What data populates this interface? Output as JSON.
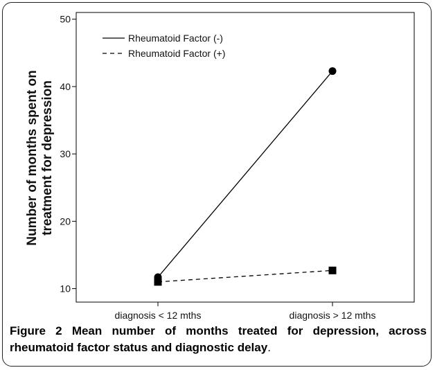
{
  "chart_data": {
    "type": "line",
    "categories": [
      "diagnosis < 12 mths",
      "diagnosis > 12 mths"
    ],
    "series": [
      {
        "name": "Rheumatoid Factor (-)",
        "values": [
          11.7,
          42.3
        ],
        "line": "solid",
        "marker": "circle"
      },
      {
        "name": "Rheumatoid Factor (+)",
        "values": [
          11.0,
          12.7
        ],
        "line": "dashed",
        "marker": "square"
      }
    ],
    "ylabel_lines": [
      "Number of months spent on",
      "treatment for depression"
    ],
    "xlabel": "",
    "ylim": [
      8,
      51
    ],
    "yticks": [
      10,
      20,
      30,
      40,
      50
    ],
    "grid": false,
    "legend": "top-left"
  },
  "caption": {
    "figure_label": "Figure 2",
    "text": "Mean number of months treated for depression, across rheumatoid factor status and diagnostic delay",
    "end": "."
  }
}
